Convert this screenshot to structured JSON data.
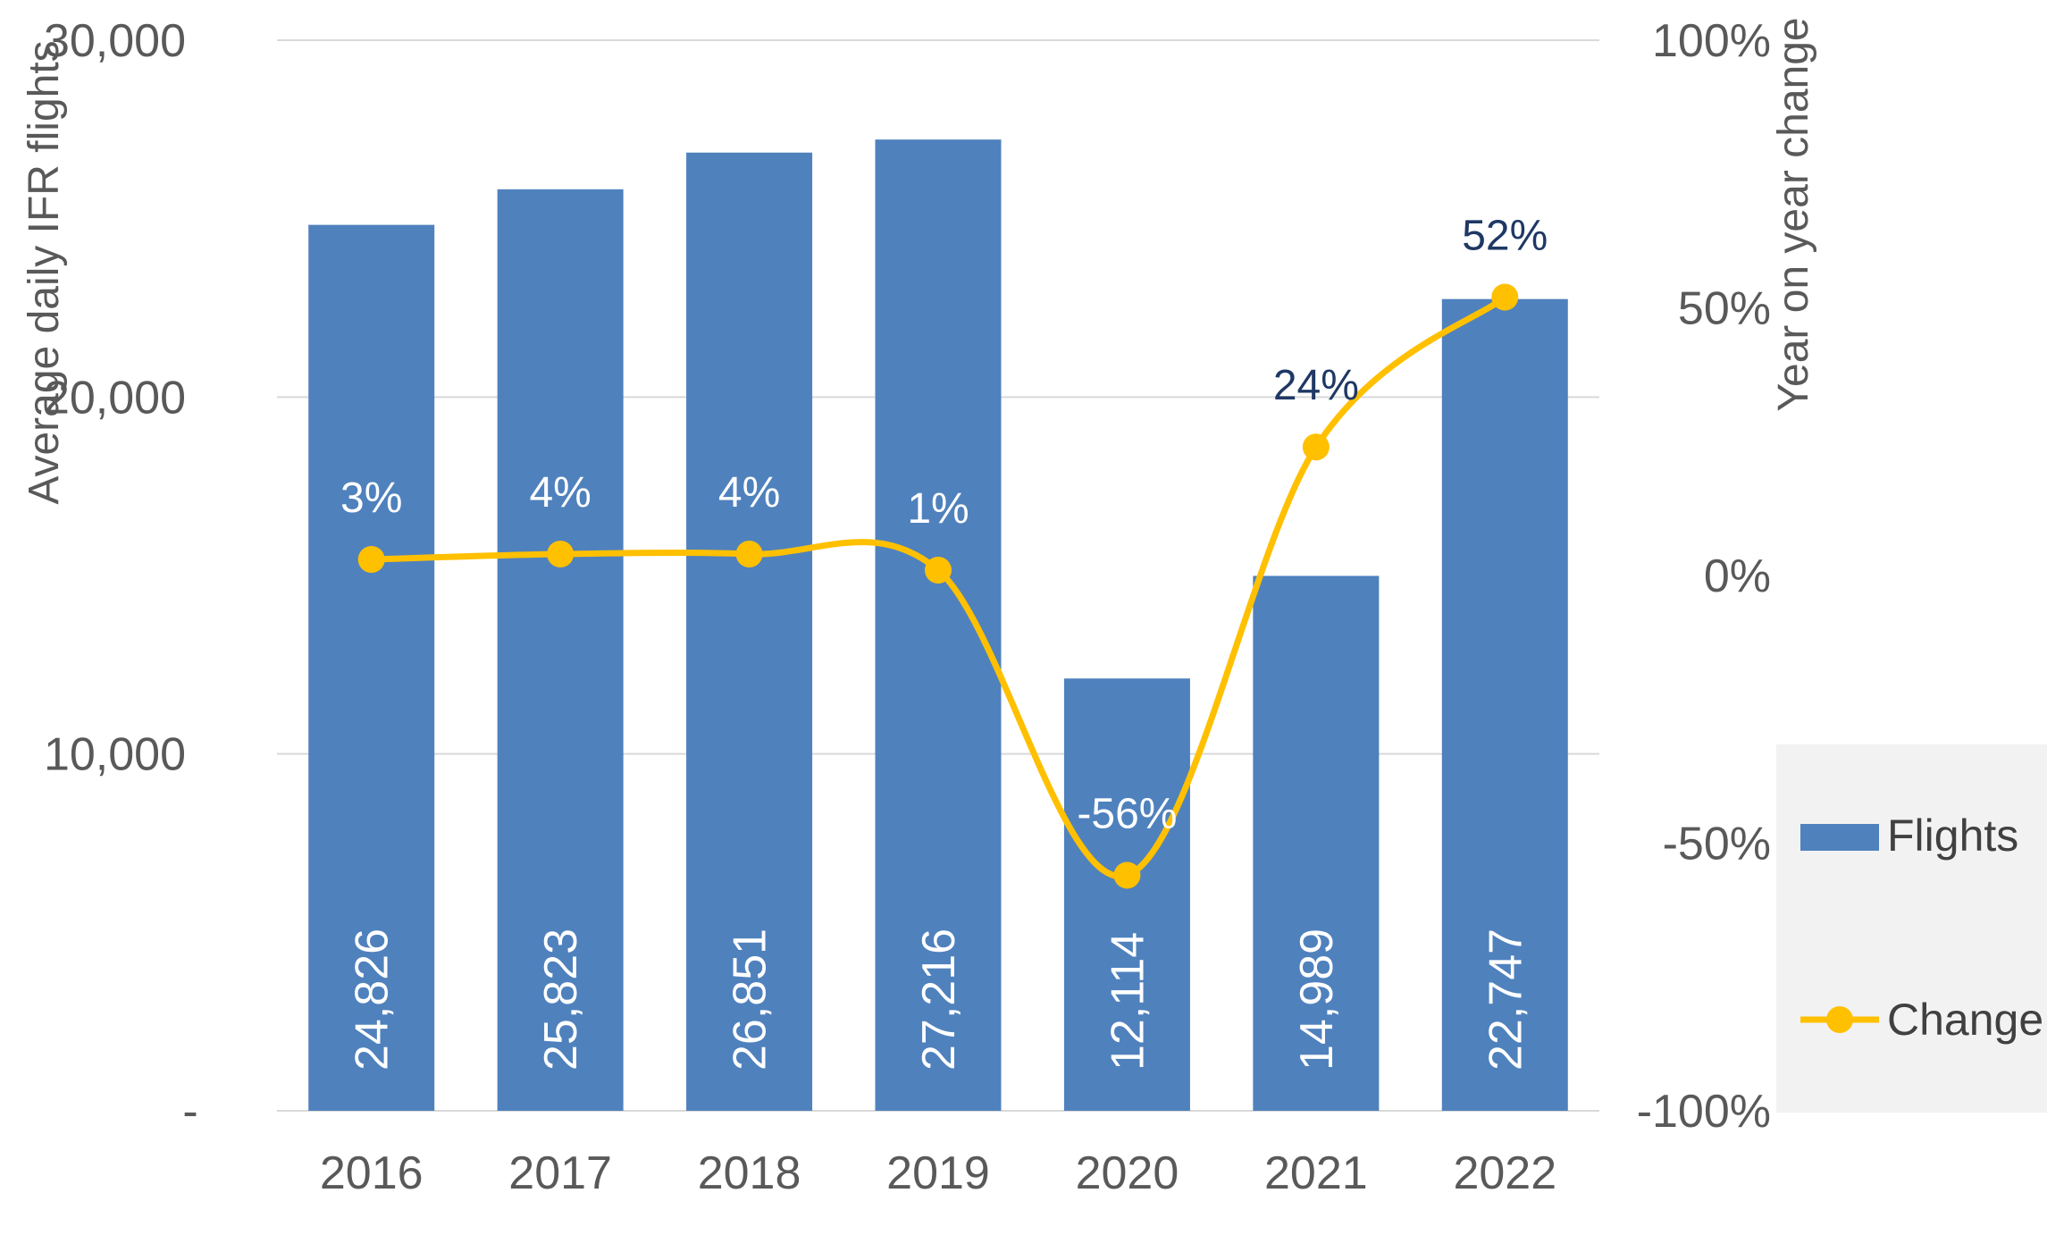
{
  "chart_data": {
    "type": "bar",
    "categories": [
      "2016",
      "2017",
      "2018",
      "2019",
      "2020",
      "2021",
      "2022"
    ],
    "series": [
      {
        "name": "Flights",
        "type": "bar",
        "axis": "left",
        "values": [
          24826,
          25823,
          26851,
          27216,
          12114,
          14989,
          22747
        ],
        "labels": [
          "24,826",
          "25,823",
          "26,851",
          "27,216",
          "12,114",
          "14,989",
          "22,747"
        ],
        "color": "#4F81BD"
      },
      {
        "name": "Change",
        "type": "line",
        "axis": "right",
        "values": [
          3,
          4,
          4,
          1,
          -56,
          24,
          52
        ],
        "labels": [
          "3%",
          "4%",
          "4%",
          "1%",
          "-56%",
          "24%",
          "52%"
        ],
        "color": "#FFC000"
      }
    ],
    "ylabel": "Average daily IFR flights",
    "y2label": "Year on year change",
    "ylim": [
      0,
      30000
    ],
    "y2lim": [
      -100,
      100
    ],
    "y_ticks": [
      "-",
      "10,000",
      "20,000",
      "30,000"
    ],
    "y2_ticks": [
      "-100%",
      "-50%",
      "0%",
      "50%",
      "100%"
    ],
    "grid": true,
    "legend_position": "right",
    "colors": {
      "bar": "#4F81BD",
      "line": "#FFC000",
      "text": "#595959",
      "grid": "#D9D9D9",
      "label_on_bar": "#FFFFFF",
      "label_outside": "#1F3864",
      "legend_bg": "#F2F2F2"
    }
  }
}
